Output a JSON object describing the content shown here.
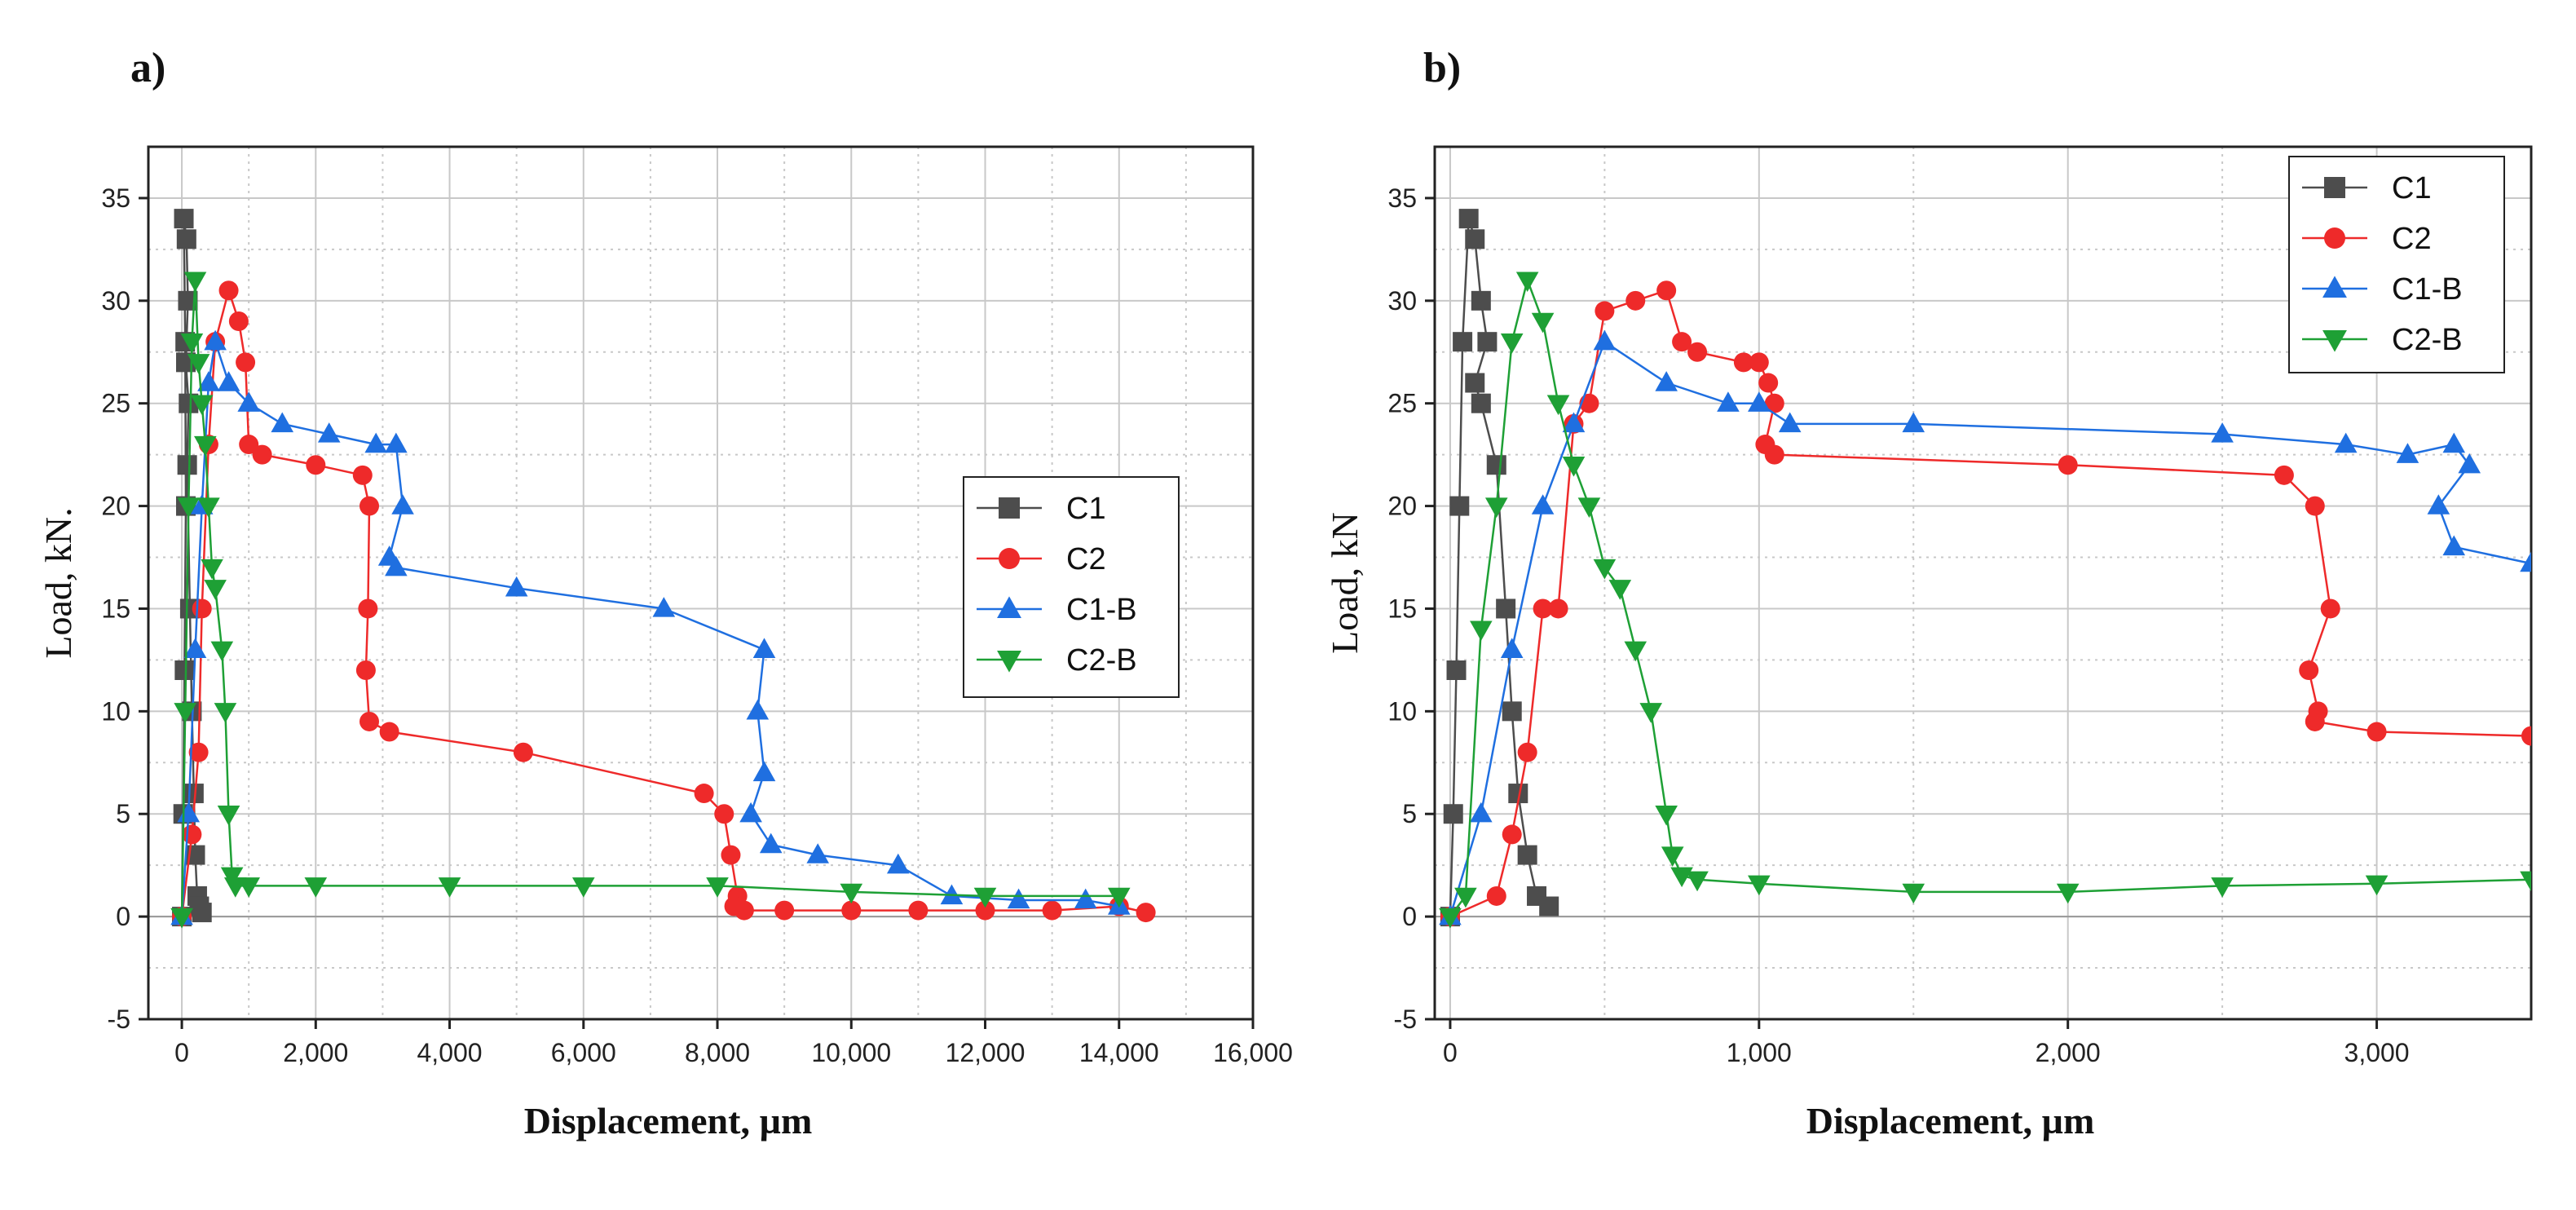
{
  "figure": {
    "panel_labels": [
      "a)",
      "b)"
    ]
  },
  "colors": {
    "C1": "#4d4d4d",
    "C2": "#ee2a2a",
    "C1-B": "#1f6fe0",
    "C2-B": "#1ea035",
    "grid": "#c8c8c8",
    "axis": "#222222"
  },
  "chart_data": [
    {
      "type": "line",
      "panel": "a)",
      "xlabel": "Displacement, µm",
      "ylabel": "Load, kN.",
      "xlim": [
        -500,
        16000
      ],
      "ylim": [
        -5,
        37.5
      ],
      "xticks": [
        0,
        2000,
        4000,
        6000,
        8000,
        10000,
        12000,
        14000,
        16000
      ],
      "xtick_labels": [
        "0",
        "2,000",
        "4,000",
        "6,000",
        "8,000",
        "10,000",
        "12,000",
        "14,000",
        "16,000"
      ],
      "yticks": [
        -5,
        0,
        5,
        10,
        15,
        20,
        25,
        30,
        35
      ],
      "ytick_labels": [
        "-5",
        "0",
        "5",
        "10",
        "15",
        "20",
        "25",
        "30",
        "35"
      ],
      "grid": true,
      "legend": "center-right",
      "series": [
        {
          "name": "C1",
          "marker": "square",
          "x": [
            0,
            20,
            40,
            60,
            50,
            30,
            70,
            90,
            60,
            100,
            80,
            120,
            150,
            180,
            200,
            230,
            260,
            300
          ],
          "y": [
            0,
            5,
            12,
            20,
            28,
            34,
            33,
            30,
            27,
            25,
            22,
            15,
            10,
            6,
            3,
            1,
            0.5,
            0.2
          ]
        },
        {
          "name": "C2",
          "marker": "circle",
          "x": [
            0,
            150,
            250,
            300,
            400,
            500,
            700,
            850,
            950,
            1000,
            1200,
            2000,
            2700,
            2800,
            2780,
            2750,
            2800,
            3100,
            5100,
            7800,
            8100,
            8200,
            8300,
            8250,
            8400,
            9000,
            10000,
            11000,
            12000,
            13000,
            14000,
            14400
          ],
          "y": [
            0,
            4,
            8,
            15,
            23,
            28,
            30.5,
            29,
            27,
            23,
            22.5,
            22,
            21.5,
            20,
            15,
            12,
            9.5,
            9,
            8,
            6,
            5,
            3,
            1,
            0.5,
            0.3,
            0.3,
            0.3,
            0.3,
            0.3,
            0.3,
            0.5,
            0.2
          ]
        },
        {
          "name": "C1-B",
          "marker": "triangle-up",
          "x": [
            0,
            100,
            200,
            300,
            400,
            500,
            700,
            1000,
            1500,
            2200,
            2900,
            3200,
            3300,
            3100,
            3200,
            5000,
            7200,
            8700,
            8600,
            8700,
            8500,
            8800,
            9500,
            10700,
            11500,
            12500,
            13500,
            14000
          ],
          "y": [
            0,
            5,
            13,
            20,
            26,
            28,
            26,
            25,
            24,
            23.5,
            23,
            23,
            20,
            17.5,
            17,
            16,
            15,
            13,
            10,
            7,
            5,
            3.5,
            3,
            2.5,
            1,
            0.8,
            0.8,
            0.5
          ]
        },
        {
          "name": "C2-B",
          "marker": "triangle-down",
          "x": [
            0,
            50,
            100,
            150,
            200,
            250,
            300,
            350,
            400,
            450,
            500,
            600,
            650,
            700,
            750,
            800,
            1000,
            2000,
            4000,
            6000,
            8000,
            10000,
            12000,
            14000
          ],
          "y": [
            0,
            10,
            20,
            28,
            31,
            27,
            25,
            23,
            20,
            17,
            16,
            13,
            10,
            5,
            2,
            1.5,
            1.5,
            1.5,
            1.5,
            1.5,
            1.5,
            1.2,
            1,
            1
          ]
        }
      ]
    },
    {
      "type": "line",
      "panel": "b)",
      "xlabel": "Displacement, µm",
      "ylabel": "Load, kN",
      "xlim": [
        -50,
        3500
      ],
      "ylim": [
        -5,
        37.5
      ],
      "xticks": [
        0,
        1000,
        2000,
        3000
      ],
      "xtick_labels": [
        "0",
        "1,000",
        "2,000",
        "3,000"
      ],
      "yticks": [
        -5,
        0,
        5,
        10,
        15,
        20,
        25,
        30,
        35
      ],
      "ytick_labels": [
        "-5",
        "0",
        "5",
        "10",
        "15",
        "20",
        "25",
        "30",
        "35"
      ],
      "grid": true,
      "legend": "top-right",
      "series": [
        {
          "name": "C1",
          "marker": "square",
          "x": [
            0,
            10,
            20,
            30,
            40,
            60,
            80,
            100,
            120,
            80,
            100,
            150,
            180,
            200,
            220,
            250,
            280,
            320
          ],
          "y": [
            0,
            5,
            12,
            20,
            28,
            34,
            33,
            30,
            28,
            26,
            25,
            22,
            15,
            10,
            6,
            3,
            1,
            0.5
          ]
        },
        {
          "name": "C2",
          "marker": "circle",
          "x": [
            0,
            150,
            200,
            250,
            300,
            350,
            400,
            450,
            500,
            600,
            700,
            750,
            800,
            950,
            1000,
            1030,
            1050,
            1020,
            1050,
            2000,
            2700,
            2800,
            2850,
            2780,
            2810,
            2800,
            3000,
            3500
          ],
          "y": [
            0,
            1,
            4,
            8,
            15,
            15,
            24,
            25,
            29.5,
            30,
            30.5,
            28,
            27.5,
            27,
            27,
            26,
            25,
            23,
            22.5,
            22,
            21.5,
            20,
            15,
            12,
            10,
            9.5,
            9,
            8.8
          ]
        },
        {
          "name": "C1-B",
          "marker": "triangle-up",
          "x": [
            0,
            100,
            200,
            300,
            400,
            500,
            700,
            900,
            1000,
            1100,
            1500,
            2500,
            2900,
            3100,
            3250,
            3300,
            3200,
            3250,
            3500
          ],
          "y": [
            0,
            5,
            13,
            20,
            24,
            28,
            26,
            25,
            25,
            24,
            24,
            23.5,
            23,
            22.5,
            23,
            22,
            20,
            18,
            17.2
          ]
        },
        {
          "name": "C2-B",
          "marker": "triangle-down",
          "x": [
            0,
            50,
            100,
            150,
            200,
            250,
            300,
            350,
            400,
            450,
            500,
            550,
            600,
            650,
            700,
            720,
            750,
            800,
            1000,
            1500,
            2000,
            2500,
            3000,
            3500
          ],
          "y": [
            0,
            1,
            14,
            20,
            28,
            31,
            29,
            25,
            22,
            20,
            17,
            16,
            13,
            10,
            5,
            3,
            2,
            1.8,
            1.6,
            1.2,
            1.2,
            1.5,
            1.6,
            1.8
          ]
        }
      ]
    }
  ]
}
